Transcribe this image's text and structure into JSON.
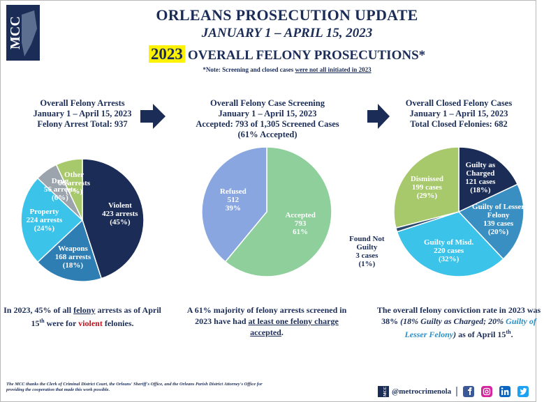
{
  "header": {
    "logo": "MCC",
    "title": "ORLEANS PROSECUTION UPDATE",
    "subtitle": "JANUARY 1 – APRIL 15, 2023",
    "year": "2023",
    "heading": "OVERALL FELONY PROSECUTIONS*",
    "note_prefix": "*Note: Screening and closed cases ",
    "note_underlined": "were not all initiated in 2023"
  },
  "chart_data": [
    {
      "type": "pie",
      "title": [
        "Overall Felony Arrests",
        "January 1 – April 15, 2023",
        "Felony Arrest Total: 937"
      ],
      "categories": [
        "Violent",
        "Weapons",
        "Property",
        "Drug",
        "Other"
      ],
      "count_labels": [
        "423 arrests",
        "168 arrests",
        "224 arrests",
        "56 arrests",
        "66 arrests"
      ],
      "values": [
        45,
        18,
        24,
        6,
        7
      ],
      "value_labels": [
        "(45%)",
        "(18%)",
        "(24%)",
        "(6%)",
        "(7%)"
      ],
      "colors": [
        "#1b2d57",
        "#2e7db3",
        "#3cc3ea",
        "#9ba4ad",
        "#a7c96b"
      ],
      "summary": [
        {
          "text": "In 2023, 45% of all ",
          "style": "plain"
        },
        {
          "text": "felony",
          "style": "underline"
        },
        {
          "text": " arrests as of April 15",
          "style": "plain"
        },
        {
          "text": "th",
          "style": "sup"
        },
        {
          "text": " were for ",
          "style": "plain"
        },
        {
          "text": "violent",
          "style": "red"
        },
        {
          "text": " felonies.",
          "style": "plain"
        }
      ]
    },
    {
      "type": "pie",
      "title": [
        "Overall Felony Case Screening",
        "January 1 – April 15, 2023",
        "Accepted: 793 of 1,305 Screened Cases",
        "(61% Accepted)"
      ],
      "categories": [
        "Accepted",
        "Refused"
      ],
      "count_labels": [
        793,
        512
      ],
      "values": [
        61,
        39
      ],
      "value_labels": [
        "61%",
        "39%"
      ],
      "colors": [
        "#8ecf9b",
        "#89a6e0"
      ],
      "summary": [
        {
          "text": "A 61% majority of felony arrests screened in 2023 have had ",
          "style": "plain"
        },
        {
          "text": "at least one felony charge accepted",
          "style": "underline"
        },
        {
          "text": ".",
          "style": "plain"
        }
      ]
    },
    {
      "type": "pie",
      "title": [
        "Overall Closed Felony Cases",
        "January 1 – April 15, 2023",
        "Total Closed Felonies: 682"
      ],
      "categories": [
        "Guilty as Charged",
        "Guilty of Lesser Felony",
        "Guilty of Misd.",
        "Found Not Guilty",
        "Dismissed"
      ],
      "count_labels": [
        "121 cases",
        "139 cases",
        "220 cases",
        "3 cases",
        "199 cases"
      ],
      "values": [
        18,
        20,
        32,
        1,
        29
      ],
      "value_labels": [
        "(18%)",
        "(20%)",
        "(32%)",
        "(1%)",
        "(29%)"
      ],
      "colors": [
        "#1b2d57",
        "#3a8fc2",
        "#3cc3ea",
        "#2c4a6e",
        "#a7c96b"
      ],
      "summary": [
        {
          "text": "The overall felony conviction rate in 2023 was 38% ",
          "style": "plain"
        },
        {
          "text": "(18% Guilty as Charged; 20% ",
          "style": "italic"
        },
        {
          "text": "Guilty of Lesser Felony",
          "style": "blue-italic"
        },
        {
          "text": ")",
          "style": "italic"
        },
        {
          "text": " as of April 15",
          "style": "plain"
        },
        {
          "text": "th",
          "style": "sup"
        },
        {
          "text": ".",
          "style": "plain"
        }
      ]
    }
  ],
  "footer": {
    "credit": "The MCC thanks the Clerk of Criminal District Court, the Orleans' Sheriff's Office, and the Orleans Parish District Attorney's Office for providing the cooperation that made this work possible.",
    "handle": "@metrocrimenola"
  }
}
